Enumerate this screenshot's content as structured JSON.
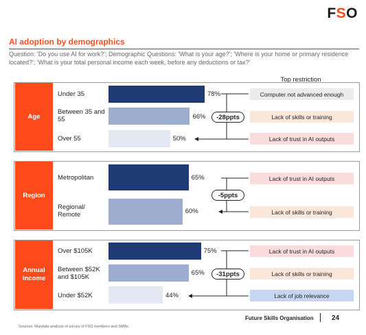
{
  "logo_text": "FSO",
  "title": "AI adoption by demographics",
  "question": "Question: 'Do you use AI for work?'; Demographic Questions: 'What is your age?'; 'Where is your home or primary residence located?'; 'What is your total personal income each week, before any deductions or tax?'",
  "top_restriction_header": "Top restriction",
  "colors": {
    "accent": "#ff4a1c",
    "bar_dark": "#1f3b73",
    "bar_mid": "#9cadd0",
    "bar_light": "#e4e8f2",
    "pill_grey": "#ececec",
    "pill_peach": "#fbe7d9",
    "pill_pink": "#fbdcdc",
    "pill_blue": "#c6d6f1"
  },
  "chart_data": {
    "type": "bar",
    "orientation": "horizontal",
    "unit": "%",
    "xlim": [
      0,
      100
    ],
    "groups": [
      {
        "name": "Age",
        "categories": [
          "Under 35",
          "Between 35 and 55",
          "Over 55"
        ],
        "values": [
          78,
          66,
          50
        ],
        "value_labels": [
          "78%",
          "66%",
          "50%"
        ],
        "difference_label": "-28ppts",
        "top_restrictions": [
          "Computer not advanced enough",
          "Lack of skills or training",
          "Lack of trust in AI outputs"
        ]
      },
      {
        "name": "Region",
        "categories": [
          "Metropolitan",
          "Regional/ Remote"
        ],
        "values": [
          65,
          60
        ],
        "value_labels": [
          "65%",
          "60%"
        ],
        "difference_label": "-5ppts",
        "top_restrictions": [
          "Lack of trust in AI outputs",
          "Lack of skills or training"
        ]
      },
      {
        "name": "Annual income",
        "categories": [
          "Over $105K",
          "Between $52K and $105K",
          "Under $52K"
        ],
        "values": [
          75,
          65,
          44
        ],
        "value_labels": [
          "75%",
          "65%",
          "44%"
        ],
        "difference_label": "-31ppts",
        "top_restrictions": [
          "Lack of trust in AI outputs",
          "Lack of skills or training",
          "Lack of job relevance"
        ]
      }
    ]
  },
  "footer": {
    "org": "Future Skills Organisation",
    "page": "24",
    "source": "Sources: Mandala analysis of survey of FSO members and SMBs."
  }
}
